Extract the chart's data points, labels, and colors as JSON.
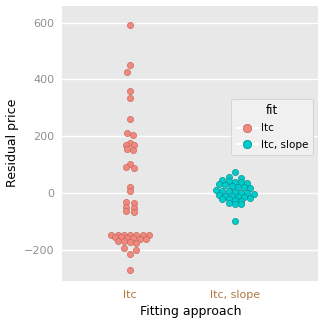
{
  "xlabel": "Fitting approach",
  "ylabel": "Residual price",
  "bg_color": "#e8e8e8",
  "grid_color": "white",
  "ltc_color": "#F08880",
  "ltc_slope_color": "#00CCCC",
  "legend_title": "fit",
  "xlim": [
    0.35,
    2.8
  ],
  "ylim": [
    -310,
    660
  ],
  "yticks": [
    -200,
    0,
    200,
    400,
    600
  ],
  "xtick_labels": [
    "ltc",
    "ltc, slope"
  ],
  "ltc_points_jitter": [
    [
      0,
      590
    ],
    [
      0,
      450
    ],
    [
      -0.03,
      425
    ],
    [
      0,
      360
    ],
    [
      0,
      335
    ],
    [
      0,
      260
    ],
    [
      -0.03,
      210
    ],
    [
      0.03,
      205
    ],
    [
      0,
      175
    ],
    [
      -0.04,
      170
    ],
    [
      0.04,
      168
    ],
    [
      -0.03,
      155
    ],
    [
      0.03,
      150
    ],
    [
      0,
      100
    ],
    [
      -0.04,
      92
    ],
    [
      0.04,
      88
    ],
    [
      0,
      20
    ],
    [
      0,
      5
    ],
    [
      -0.04,
      -32
    ],
    [
      0.04,
      -35
    ],
    [
      -0.04,
      -50
    ],
    [
      0.04,
      -55
    ],
    [
      -0.04,
      -65
    ],
    [
      0.04,
      -68
    ],
    [
      -0.18,
      -148
    ],
    [
      -0.12,
      -148
    ],
    [
      -0.06,
      -148
    ],
    [
      0.0,
      -150
    ],
    [
      0.06,
      -150
    ],
    [
      0.12,
      -150
    ],
    [
      0.18,
      -150
    ],
    [
      -0.15,
      -155
    ],
    [
      -0.09,
      -155
    ],
    [
      -0.03,
      -158
    ],
    [
      0.03,
      -160
    ],
    [
      0.09,
      -162
    ],
    [
      0.15,
      -163
    ],
    [
      -0.12,
      -168
    ],
    [
      -0.06,
      -170
    ],
    [
      0.0,
      -172
    ],
    [
      0.06,
      -175
    ],
    [
      -0.06,
      -195
    ],
    [
      0.06,
      -200
    ],
    [
      0,
      -215
    ],
    [
      0,
      -270
    ]
  ],
  "ltc_slope_points_jitter": [
    [
      0,
      75
    ],
    [
      -0.06,
      55
    ],
    [
      0.06,
      52
    ],
    [
      -0.12,
      45
    ],
    [
      -0.06,
      42
    ],
    [
      0,
      40
    ],
    [
      0.06,
      38
    ],
    [
      0.12,
      36
    ],
    [
      -0.15,
      30
    ],
    [
      -0.09,
      28
    ],
    [
      -0.03,
      25
    ],
    [
      0.03,
      22
    ],
    [
      0.09,
      20
    ],
    [
      0.15,
      18
    ],
    [
      -0.18,
      10
    ],
    [
      -0.12,
      8
    ],
    [
      -0.06,
      5
    ],
    [
      0.0,
      3
    ],
    [
      0.06,
      1
    ],
    [
      0.12,
      -1
    ],
    [
      0.18,
      -3
    ],
    [
      -0.15,
      -8
    ],
    [
      -0.09,
      -10
    ],
    [
      -0.03,
      -12
    ],
    [
      0.03,
      -14
    ],
    [
      0.09,
      -15
    ],
    [
      0.15,
      -18
    ],
    [
      -0.12,
      -20
    ],
    [
      -0.06,
      -22
    ],
    [
      0.0,
      -25
    ],
    [
      0.06,
      -28
    ],
    [
      -0.06,
      -35
    ],
    [
      0.0,
      -38
    ],
    [
      0.06,
      -40
    ],
    [
      0,
      -100
    ]
  ]
}
